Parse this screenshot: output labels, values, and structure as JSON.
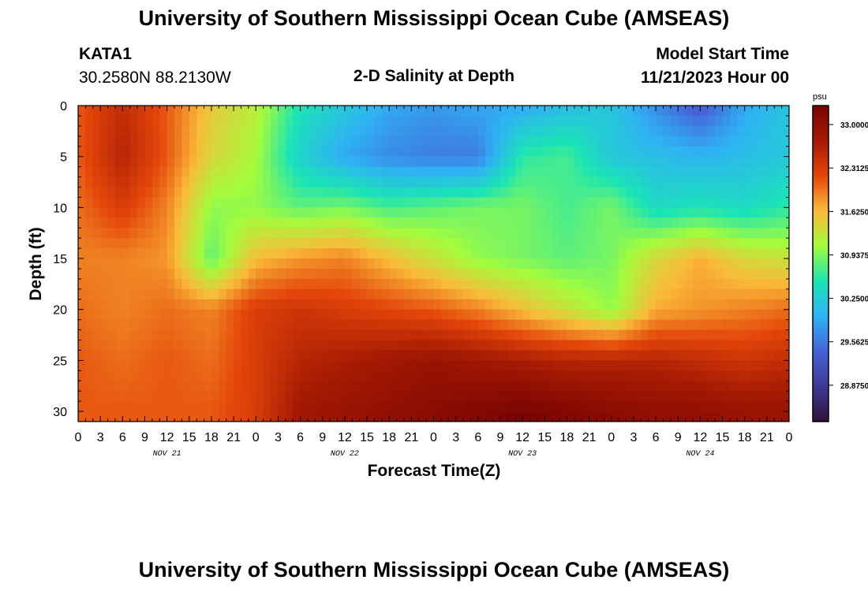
{
  "page": {
    "title_top": "University of Southern Mississippi Ocean Cube (AMSEAS)",
    "title_bottom": "University of Southern Mississippi Ocean Cube (AMSEAS)",
    "station_id": "KATA1",
    "station_coords": "30.2580N  88.2130W",
    "plot_subtitle": "2-D Salinity at Depth",
    "model_start_label": "Model Start Time",
    "model_start_value": "11/21/2023 Hour 00"
  },
  "chart_data": {
    "type": "heatmap",
    "title": "2-D Salinity at Depth",
    "xlabel": "Forecast Time(Z)",
    "ylabel": "Depth (ft)",
    "x_range_hours": [
      0,
      96
    ],
    "y_range_ft": [
      0,
      31
    ],
    "y_ticks": [
      0,
      5,
      10,
      15,
      20,
      25,
      30
    ],
    "y_reversed": true,
    "x_tick_labels": [
      "0",
      "3",
      "6",
      "9",
      "12",
      "15",
      "18",
      "21",
      "0",
      "3",
      "6",
      "9",
      "12",
      "15",
      "18",
      "21",
      "0",
      "3",
      "6",
      "9",
      "12",
      "15",
      "18",
      "21",
      "0",
      "3",
      "6",
      "9",
      "12",
      "15",
      "18",
      "21",
      "0"
    ],
    "day_labels": [
      {
        "label": "NOV 21",
        "hour": 12
      },
      {
        "label": "NOV 22",
        "hour": 36
      },
      {
        "label": "NOV 23",
        "hour": 60
      },
      {
        "label": "NOV 24",
        "hour": 84
      }
    ],
    "colorbar": {
      "unit": "psu",
      "range": [
        28.3,
        33.3
      ],
      "labels": [
        "33.0000",
        "32.3125",
        "31.6250",
        "30.9375",
        "30.2500",
        "29.5625",
        "28.8750"
      ],
      "label_values": [
        33.0,
        32.3125,
        31.625,
        30.9375,
        30.25,
        29.5625,
        28.875
      ],
      "colors": [
        "#30123b",
        "#3e3994",
        "#4662d7",
        "#2fb2f4",
        "#1ae4b6",
        "#a4fc3c",
        "#faba39",
        "#e4460a",
        "#a51a03",
        "#7a0403"
      ]
    },
    "depths_ft": [
      0,
      5,
      10,
      15,
      20,
      25,
      30
    ],
    "hours": [
      0,
      6,
      12,
      18,
      24,
      30,
      36,
      42,
      48,
      54,
      60,
      66,
      72,
      78,
      84,
      90,
      96
    ],
    "salinity_psu": [
      [
        32.1,
        32.5,
        32.1,
        31.5,
        31.2,
        30.5,
        30.2,
        29.9,
        29.8,
        29.9,
        29.9,
        30.1,
        30.2,
        29.7,
        29.3,
        29.9,
        30.2
      ],
      [
        32.1,
        32.6,
        32.1,
        31.4,
        31.1,
        30.3,
        29.9,
        29.7,
        29.6,
        29.6,
        30.6,
        30.7,
        30.2,
        30.1,
        30.0,
        30.1,
        30.2
      ],
      [
        32.0,
        32.3,
        31.9,
        31.0,
        31.0,
        30.8,
        30.9,
        30.7,
        30.8,
        30.9,
        30.9,
        30.7,
        30.9,
        30.4,
        30.5,
        30.4,
        30.6
      ],
      [
        31.9,
        31.9,
        31.8,
        30.8,
        31.6,
        31.8,
        31.9,
        31.6,
        31.3,
        31.0,
        30.9,
        30.8,
        30.9,
        31.4,
        31.7,
        31.4,
        31.3
      ],
      [
        32.0,
        31.9,
        32.0,
        31.9,
        32.3,
        32.4,
        32.3,
        32.2,
        32.1,
        31.9,
        31.6,
        31.3,
        31.0,
        31.7,
        31.8,
        31.9,
        32.0
      ],
      [
        32.1,
        32.0,
        32.1,
        32.0,
        32.3,
        32.6,
        32.7,
        32.8,
        32.9,
        32.8,
        32.7,
        32.6,
        32.6,
        32.6,
        32.5,
        32.4,
        32.5
      ],
      [
        32.1,
        32.1,
        32.1,
        32.1,
        32.3,
        32.8,
        32.9,
        33.0,
        33.1,
        33.2,
        33.3,
        33.2,
        33.1,
        33.0,
        33.0,
        32.9,
        32.9
      ]
    ]
  }
}
